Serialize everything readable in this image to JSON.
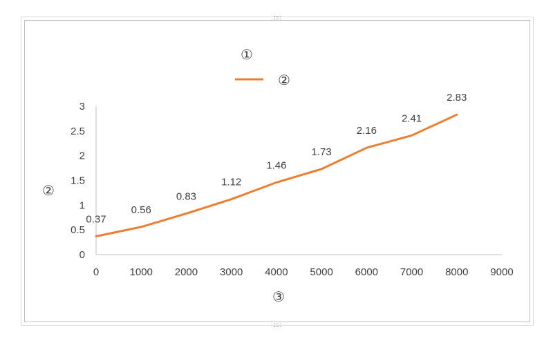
{
  "chart_data": {
    "type": "line",
    "title": "①",
    "xlabel": "③",
    "ylabel": "②",
    "legend_position": "top",
    "grid": false,
    "xlim": [
      0,
      9000
    ],
    "ylim": [
      0,
      3
    ],
    "x_ticks": [
      0,
      1000,
      2000,
      3000,
      4000,
      5000,
      6000,
      7000,
      8000,
      9000
    ],
    "y_ticks": [
      0,
      0.5,
      1,
      1.5,
      2,
      2.5,
      3
    ],
    "x_tick_labels": [
      "0",
      "1000",
      "2000",
      "3000",
      "4000",
      "5000",
      "6000",
      "7000",
      "8000",
      "9000"
    ],
    "y_tick_labels": [
      "0",
      "0.5",
      "1",
      "1.5",
      "2",
      "2.5",
      "3"
    ],
    "series": [
      {
        "name": "②",
        "color": "#ED7D31",
        "x": [
          0,
          1000,
          2000,
          3000,
          4000,
          5000,
          6000,
          7000,
          8000
        ],
        "y": [
          0.37,
          0.56,
          0.83,
          1.12,
          1.46,
          1.73,
          2.16,
          2.41,
          2.83
        ],
        "data_labels": [
          "0.37",
          "0.56",
          "0.83",
          "1.12",
          "1.46",
          "1.73",
          "2.16",
          "2.41",
          "2.83"
        ]
      }
    ]
  }
}
